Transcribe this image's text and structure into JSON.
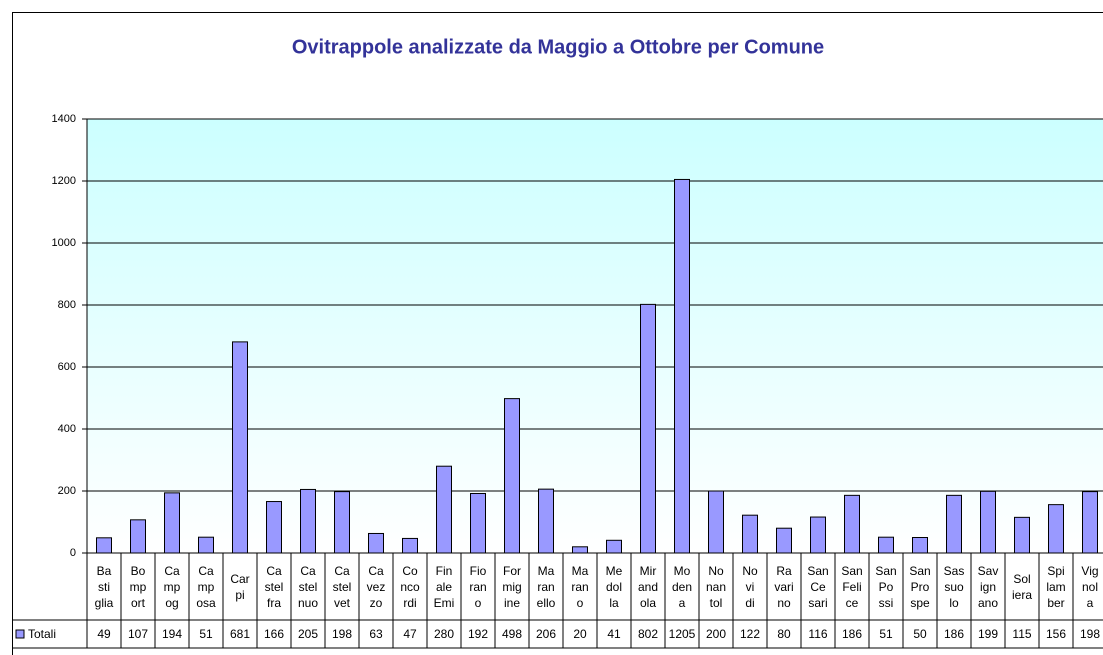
{
  "chart_data": {
    "type": "bar",
    "title": "Ovitrappole analizzate da Maggio a Ottobre per Comune",
    "categories": [
      "Ba sti glia",
      "Bo mp ort",
      "Ca mp og",
      "Ca mp osa",
      "Car pi",
      "Ca stel fra",
      "Ca stel nuo",
      "Ca stel vet",
      "Ca vez zo",
      "Co nco rdi",
      "Fin ale Emi",
      "Fio ran o",
      "For mig ine",
      "Ma ran ello",
      "Ma ran o",
      "Me dol la",
      "Mir and ola",
      "Mo den a",
      "No nan tol",
      "No vi di",
      "Ra vari no",
      "San Ce sari",
      "San Feli ce",
      "San Po ssi",
      "San Pro spe",
      "Sas suo lo",
      "Sav ign ano",
      "Sol iera",
      "Spi lam ber",
      "Vig nol a"
    ],
    "series": [
      {
        "name": "Totali",
        "color": "#9999ff",
        "values": [
          49,
          107,
          194,
          51,
          681,
          166,
          205,
          198,
          63,
          47,
          280,
          192,
          498,
          206,
          20,
          41,
          802,
          1205,
          200,
          122,
          80,
          116,
          186,
          51,
          50,
          186,
          199,
          115,
          156,
          198
        ]
      }
    ],
    "ylim": [
      0,
      1400
    ],
    "yticks": [
      0,
      200,
      400,
      600,
      800,
      1000,
      1200,
      1400
    ],
    "grid": true
  }
}
